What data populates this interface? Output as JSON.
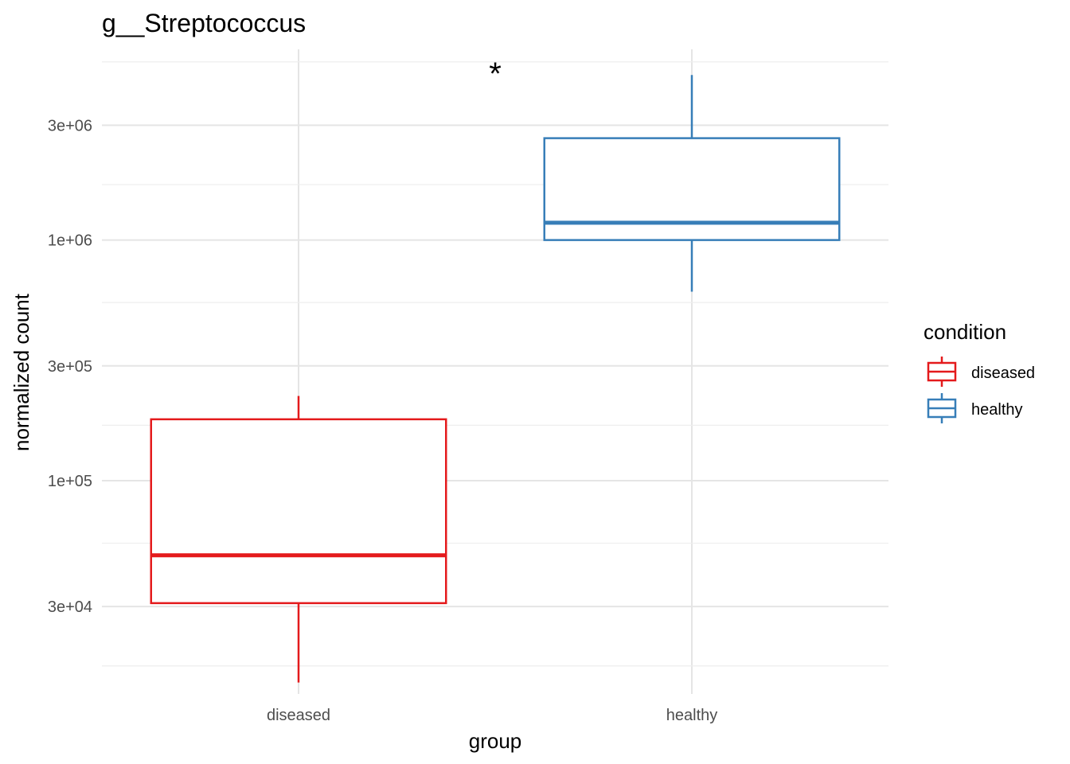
{
  "chart_data": {
    "type": "box",
    "title": "g__Streptococcus",
    "xlabel": "group",
    "ylabel": "normalized count",
    "y_scale": "log10",
    "ylim": [
      13000,
      6200000
    ],
    "y_ticks": [
      30000,
      100000,
      300000,
      1000000,
      3000000
    ],
    "y_tick_labels": [
      "3e+04",
      "1e+05",
      "3e+05",
      "1e+06",
      "3e+06"
    ],
    "y_minor_ticks": [
      17000,
      55000,
      170000,
      550000,
      1700000,
      5500000
    ],
    "categories": [
      "diseased",
      "healthy"
    ],
    "boxes": [
      {
        "category": "diseased",
        "condition": "diseased",
        "color": "#e41a1c",
        "whisker_low": 14500,
        "q1": 31000,
        "median": 49000,
        "q3": 180000,
        "whisker_high": 225000
      },
      {
        "category": "healthy",
        "condition": "healthy",
        "color": "#377eb8",
        "whisker_low": 610000,
        "q1": 1000000,
        "median": 1180000,
        "q3": 2650000,
        "whisker_high": 4850000
      }
    ],
    "annotation": {
      "text": "*",
      "position": "between-groups-top"
    },
    "legend": {
      "title": "condition",
      "placement": "right",
      "entries": [
        {
          "label": "diseased",
          "color": "#e41a1c"
        },
        {
          "label": "healthy",
          "color": "#377eb8"
        }
      ]
    },
    "grid": true
  }
}
